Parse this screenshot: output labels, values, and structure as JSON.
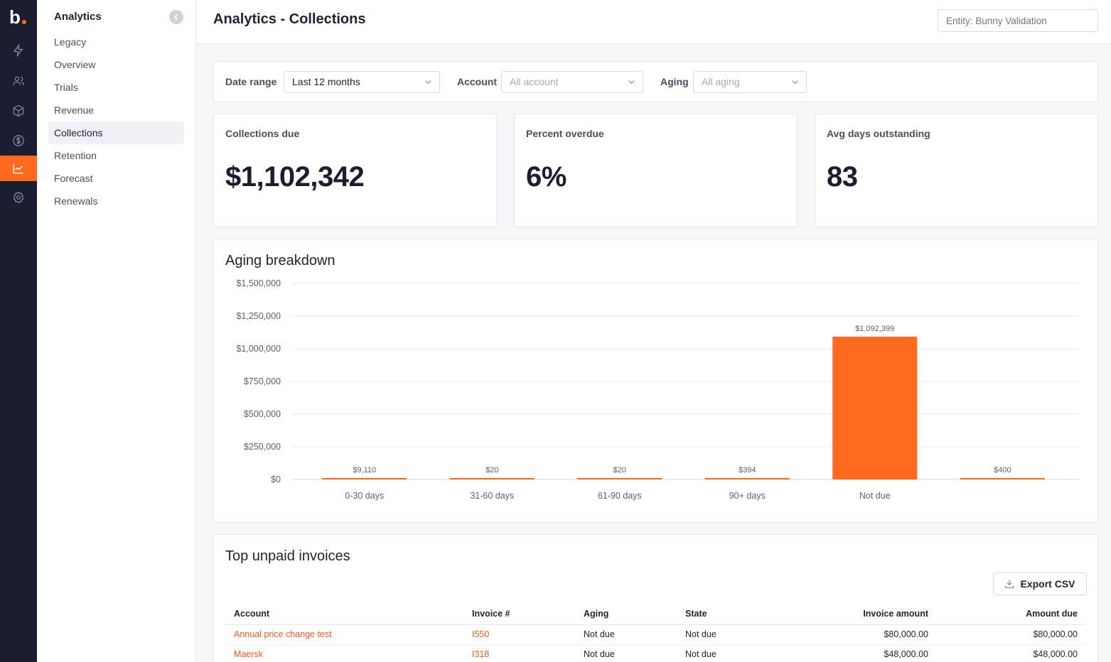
{
  "rail": {
    "icons": [
      "bolt-icon",
      "users-icon",
      "box-icon",
      "dollar-icon",
      "chart-icon",
      "settings-icon"
    ],
    "active": "chart-icon",
    "accent": "#ff6a1f"
  },
  "sidebar": {
    "title": "Analytics",
    "items": [
      {
        "label": "Legacy"
      },
      {
        "label": "Overview"
      },
      {
        "label": "Trials"
      },
      {
        "label": "Revenue"
      },
      {
        "label": "Collections",
        "active": true
      },
      {
        "label": "Retention"
      },
      {
        "label": "Forecast"
      },
      {
        "label": "Renewals"
      }
    ]
  },
  "header": {
    "title": "Analytics - Collections",
    "entity_placeholder": "Entity: Bunny Validation"
  },
  "filters": {
    "date_range_label": "Date range",
    "date_range_value": "Last 12 months",
    "account_label": "Account",
    "account_placeholder": "All account",
    "aging_label": "Aging",
    "aging_placeholder": "All aging"
  },
  "kpis": [
    {
      "label": "Collections due",
      "value": "$1,102,342"
    },
    {
      "label": "Percent overdue",
      "value": "6%"
    },
    {
      "label": "Avg days outstanding",
      "value": "83"
    }
  ],
  "chart_data": {
    "type": "bar",
    "title": "Aging breakdown",
    "categories": [
      "0-30 days",
      "31-60 days",
      "61-90 days",
      "90+ days",
      "Not due",
      ""
    ],
    "values": [
      9110,
      20,
      20,
      394,
      1092399,
      400
    ],
    "data_labels": [
      "$9,110",
      "$20",
      "$20",
      "$394",
      "$1,092,399",
      "$400"
    ],
    "y_ticks": [
      "$0",
      "$250,000",
      "$500,000",
      "$750,000",
      "$1,000,000",
      "$1,250,000",
      "$1,500,000"
    ],
    "ylim": [
      0,
      1500000
    ],
    "grid": true,
    "color": "#ff6a1f"
  },
  "invoices": {
    "title": "Top unpaid invoices",
    "export_label": "Export CSV",
    "columns": [
      "Account",
      "Invoice #",
      "Aging",
      "State",
      "Invoice amount",
      "Amount due"
    ],
    "rows": [
      [
        "Annual price change test",
        "I550",
        "Not due",
        "Not due",
        "$80,000.00",
        "$80,000.00"
      ],
      [
        "Maersk",
        "I318",
        "Not due",
        "Not due",
        "$48,000.00",
        "$48,000.00"
      ]
    ]
  }
}
